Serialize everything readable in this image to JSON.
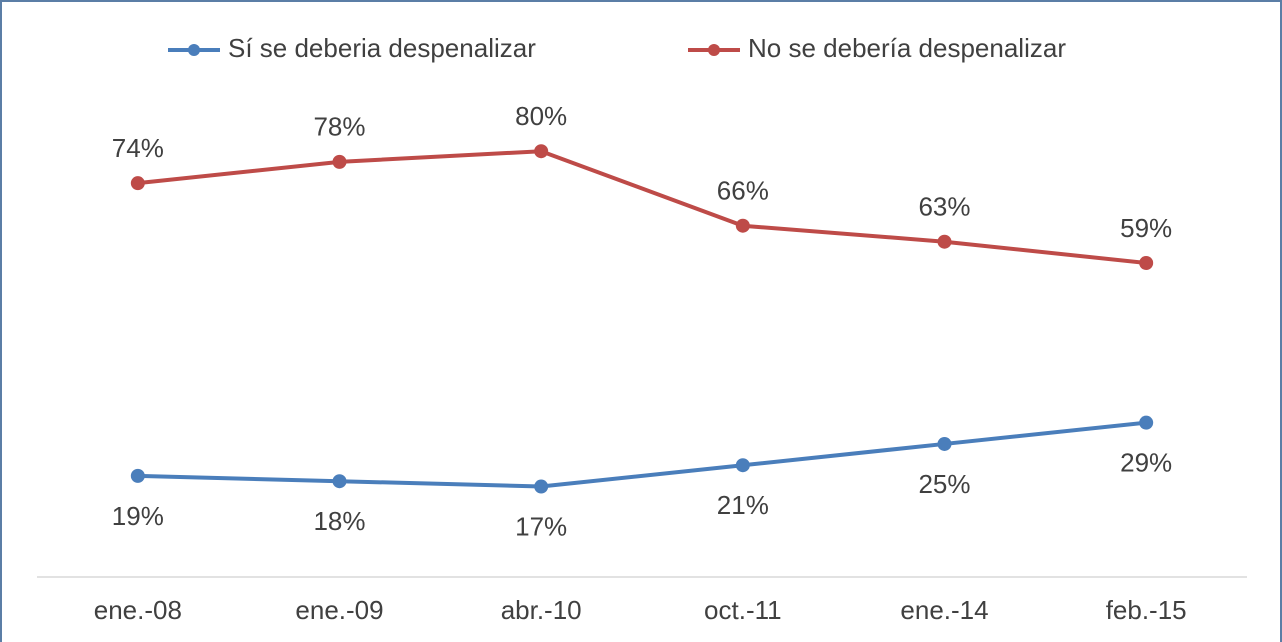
{
  "chart_data": {
    "type": "line",
    "categories": [
      "ene.-08",
      "ene.-09",
      "abr.-10",
      "oct.-11",
      "ene.-14",
      "feb.-15"
    ],
    "series": [
      {
        "name": "Sí se deberia despenalizar",
        "color": "#4a7ebb",
        "values": [
          19,
          18,
          17,
          21,
          25,
          29
        ],
        "value_labels": [
          "19%",
          "18%",
          "17%",
          "21%",
          "25%",
          "29%"
        ]
      },
      {
        "name": "No se debería despenalizar",
        "color": "#be4b48",
        "values": [
          74,
          78,
          80,
          66,
          63,
          59
        ],
        "value_labels": [
          "74%",
          "78%",
          "80%",
          "66%",
          "63%",
          "59%"
        ]
      }
    ],
    "ylim": [
      0,
      90
    ],
    "legend": "top"
  }
}
